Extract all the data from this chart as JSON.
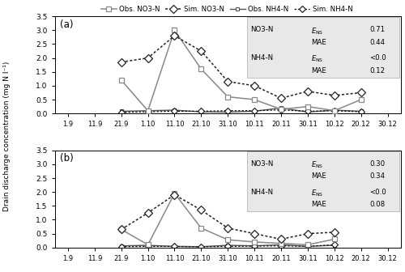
{
  "x_labels": [
    "1.9",
    "11.9",
    "21.9",
    "1.10",
    "11.10",
    "21.10",
    "31.10",
    "10.11",
    "20.11",
    "30.11",
    "10.12",
    "20.12",
    "30.12"
  ],
  "x_positions": [
    0,
    1,
    2,
    3,
    4,
    5,
    6,
    7,
    8,
    9,
    10,
    11,
    12
  ],
  "panel_a": {
    "obs_no3": [
      null,
      null,
      1.2,
      0.1,
      3.0,
      1.6,
      0.6,
      0.5,
      0.15,
      0.25,
      0.1,
      0.5,
      null
    ],
    "sim_no3": [
      null,
      null,
      1.85,
      2.0,
      2.8,
      2.25,
      1.15,
      1.0,
      0.55,
      0.8,
      0.65,
      0.75,
      null
    ],
    "obs_nh4": [
      null,
      null,
      0.08,
      0.1,
      0.12,
      0.06,
      0.05,
      0.08,
      0.2,
      0.05,
      0.12,
      0.08,
      null
    ],
    "sim_nh4": [
      null,
      null,
      0.04,
      0.06,
      0.08,
      0.08,
      0.1,
      0.1,
      0.13,
      0.08,
      0.1,
      0.06,
      null
    ],
    "label": "(a)",
    "ens_no3": "0.71",
    "mae_no3": "0.44",
    "ens_nh4": "<0.0",
    "mae_nh4": "0.12"
  },
  "panel_b": {
    "obs_no3": [
      null,
      null,
      0.65,
      0.1,
      1.95,
      0.7,
      0.28,
      0.2,
      0.15,
      0.1,
      0.3,
      null,
      null
    ],
    "sim_no3": [
      null,
      null,
      0.65,
      1.25,
      1.9,
      1.35,
      0.7,
      0.5,
      0.3,
      0.5,
      0.55,
      null,
      null
    ],
    "obs_nh4": [
      null,
      null,
      0.06,
      0.08,
      0.04,
      0.03,
      0.08,
      0.06,
      0.1,
      0.04,
      0.08,
      null,
      null
    ],
    "sim_nh4": [
      null,
      null,
      0.03,
      0.04,
      0.04,
      0.03,
      0.04,
      0.05,
      0.06,
      0.04,
      0.1,
      null,
      null
    ],
    "label": "(b)",
    "ens_no3": "0.30",
    "mae_no3": "0.34",
    "ens_nh4": "<0.0",
    "mae_nh4": "0.08"
  },
  "ylabel": "Drain discharge concentration (mg N l⁻¹)",
  "ylim": [
    0,
    3.5
  ],
  "yticks": [
    0,
    0.5,
    1.0,
    1.5,
    2.0,
    2.5,
    3.0,
    3.5
  ],
  "color_obs_no3": "#888888",
  "color_sim_no3": "#222222",
  "color_obs_nh4": "#555555",
  "color_sim_nh4": "#111111"
}
